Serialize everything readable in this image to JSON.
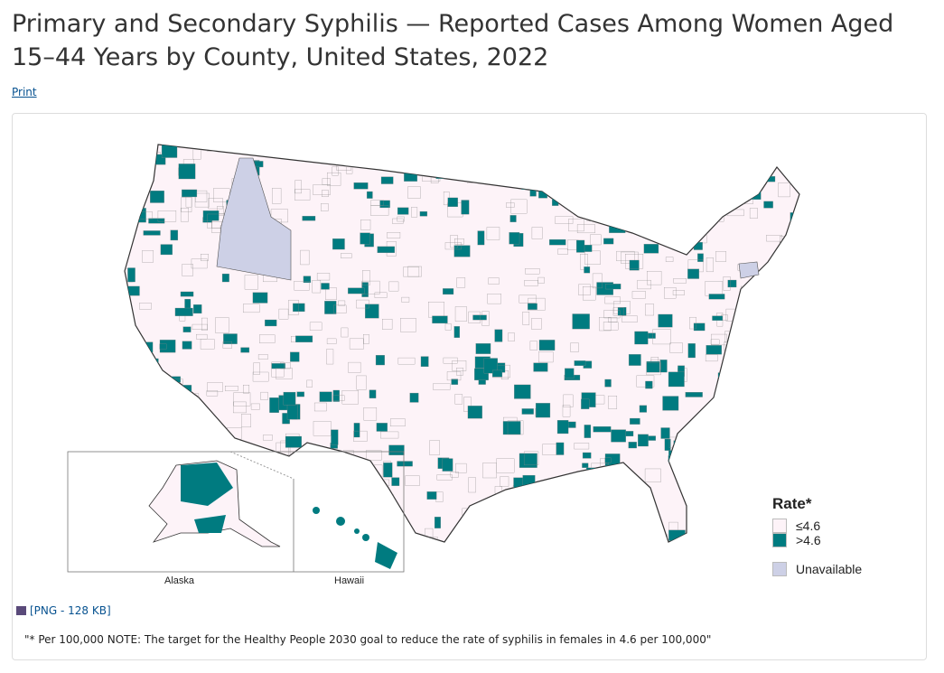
{
  "title": "Primary and Secondary Syphilis — Reported Cases Among Women Aged 15–44 Years by County, United States, 2022",
  "print_link": "Print",
  "map": {
    "legend": {
      "title": "Rate*",
      "items": [
        {
          "label": "≤4.6",
          "color": "#fdf3f8"
        },
        {
          "label": ">4.6",
          "color": "#007b80"
        },
        {
          "label": "Unavailable",
          "color": "#cdd0e6"
        }
      ]
    },
    "insets": {
      "alaska": "Alaska",
      "hawaii": "Hawaii"
    }
  },
  "download": {
    "label": "[PNG - 128 KB]",
    "icon": "image-icon"
  },
  "footnote": "\"* Per 100,000  NOTE: The target for the Healthy People 2030 goal to reduce the rate of syphilis in females in 4.6 per 100,000\""
}
